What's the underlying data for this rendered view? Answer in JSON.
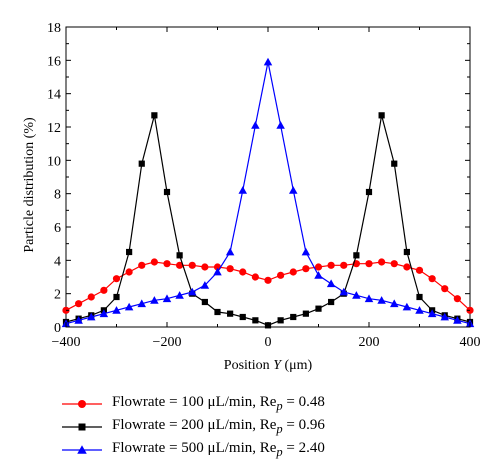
{
  "chart_data": {
    "type": "line",
    "title": "",
    "xlabel": "Position Y (μm)",
    "ylabel": "Particle distribution (%)",
    "xlim": [
      -400,
      400
    ],
    "ylim": [
      0,
      18
    ],
    "xticks": [
      -400,
      -200,
      0,
      200,
      400
    ],
    "yticks": [
      0,
      2,
      4,
      6,
      8,
      10,
      12,
      14,
      16,
      18
    ],
    "grid": false,
    "legend_position": "below",
    "series": [
      {
        "name": "Flowrate = 100 μL/min, Re_p = 0.48",
        "legend_label": "Flowrate = 100 μL/min, Rep = 0.48",
        "color": "#ff0000",
        "marker": "circle",
        "points": [
          [
            -400,
            1.0
          ],
          [
            -375,
            1.4
          ],
          [
            -350,
            1.8
          ],
          [
            -325,
            2.2
          ],
          [
            -300,
            2.9
          ],
          [
            -275,
            3.3
          ],
          [
            -250,
            3.7
          ],
          [
            -225,
            3.9
          ],
          [
            -200,
            3.8
          ],
          [
            -175,
            3.7
          ],
          [
            -150,
            3.7
          ],
          [
            -125,
            3.6
          ],
          [
            -100,
            3.6
          ],
          [
            -75,
            3.5
          ],
          [
            -50,
            3.3
          ],
          [
            -25,
            3.0
          ],
          [
            0,
            2.8
          ],
          [
            25,
            3.1
          ],
          [
            50,
            3.3
          ],
          [
            75,
            3.5
          ],
          [
            100,
            3.6
          ],
          [
            125,
            3.7
          ],
          [
            150,
            3.7
          ],
          [
            175,
            3.8
          ],
          [
            200,
            3.8
          ],
          [
            225,
            3.9
          ],
          [
            250,
            3.8
          ],
          [
            275,
            3.6
          ],
          [
            300,
            3.4
          ],
          [
            325,
            2.9
          ],
          [
            350,
            2.3
          ],
          [
            375,
            1.7
          ],
          [
            400,
            1.0
          ]
        ]
      },
      {
        "name": "Flowrate = 200 μL/min, Re_p = 0.96",
        "legend_label": "Flowrate = 200 μL/min, Rep = 0.96",
        "color": "#000000",
        "marker": "square",
        "points": [
          [
            -400,
            0.3
          ],
          [
            -375,
            0.5
          ],
          [
            -350,
            0.7
          ],
          [
            -325,
            1.0
          ],
          [
            -300,
            1.8
          ],
          [
            -275,
            4.5
          ],
          [
            -250,
            9.8
          ],
          [
            -225,
            12.7
          ],
          [
            -200,
            8.1
          ],
          [
            -175,
            4.3
          ],
          [
            -150,
            2.0
          ],
          [
            -125,
            1.5
          ],
          [
            -100,
            0.9
          ],
          [
            -75,
            0.8
          ],
          [
            -50,
            0.6
          ],
          [
            -25,
            0.4
          ],
          [
            0,
            0.1
          ],
          [
            25,
            0.4
          ],
          [
            50,
            0.6
          ],
          [
            75,
            0.8
          ],
          [
            100,
            1.1
          ],
          [
            125,
            1.5
          ],
          [
            150,
            2.0
          ],
          [
            175,
            4.3
          ],
          [
            200,
            8.1
          ],
          [
            225,
            12.7
          ],
          [
            250,
            9.8
          ],
          [
            275,
            4.5
          ],
          [
            300,
            1.8
          ],
          [
            325,
            1.0
          ],
          [
            350,
            0.7
          ],
          [
            375,
            0.5
          ],
          [
            400,
            0.3
          ]
        ]
      },
      {
        "name": "Flowrate = 500 μL/min, Re_p = 2.40",
        "legend_label": "Flowrate = 500 μL/min, Rep = 2.40",
        "color": "#0000ff",
        "marker": "triangle",
        "points": [
          [
            -400,
            0.2
          ],
          [
            -375,
            0.4
          ],
          [
            -350,
            0.6
          ],
          [
            -325,
            0.8
          ],
          [
            -300,
            1.0
          ],
          [
            -275,
            1.2
          ],
          [
            -250,
            1.4
          ],
          [
            -225,
            1.6
          ],
          [
            -200,
            1.7
          ],
          [
            -175,
            1.9
          ],
          [
            -150,
            2.1
          ],
          [
            -125,
            2.5
          ],
          [
            -100,
            3.3
          ],
          [
            -75,
            4.5
          ],
          [
            -50,
            8.2
          ],
          [
            -25,
            12.1
          ],
          [
            0,
            15.9
          ],
          [
            25,
            12.1
          ],
          [
            50,
            8.2
          ],
          [
            75,
            4.5
          ],
          [
            100,
            3.1
          ],
          [
            125,
            2.6
          ],
          [
            150,
            2.1
          ],
          [
            175,
            1.9
          ],
          [
            200,
            1.7
          ],
          [
            225,
            1.6
          ],
          [
            250,
            1.4
          ],
          [
            275,
            1.2
          ],
          [
            300,
            1.0
          ],
          [
            325,
            0.8
          ],
          [
            350,
            0.6
          ],
          [
            375,
            0.4
          ],
          [
            400,
            0.2
          ]
        ]
      }
    ]
  }
}
